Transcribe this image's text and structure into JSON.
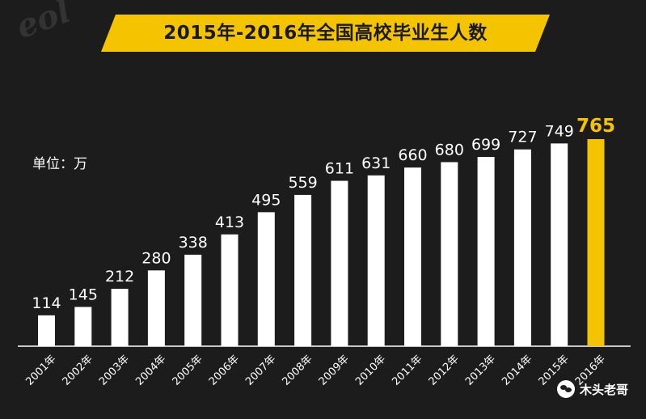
{
  "chart_data": {
    "type": "bar",
    "title": "2015年-2016年全国高校毕业生人数",
    "unit_label": "单位：万",
    "categories": [
      "2001年",
      "2002年",
      "2003年",
      "2004年",
      "2005年",
      "2006年",
      "2007年",
      "2008年",
      "2009年",
      "2010年",
      "2011年",
      "2012年",
      "2013年",
      "2014年",
      "2015年",
      "2016年"
    ],
    "values": [
      114,
      145,
      212,
      280,
      338,
      413,
      495,
      559,
      611,
      631,
      660,
      680,
      699,
      727,
      749,
      765
    ],
    "highlight_index": 15,
    "ylim": [
      0,
      765
    ],
    "xlabel": "",
    "ylabel": "",
    "grid": false
  },
  "colors": {
    "background": "#1c1c1c",
    "bar": "#ffffff",
    "highlight": "#f5c400",
    "banner": "#f5c400",
    "axis": "#ffffff"
  },
  "watermark": {
    "text": "eol"
  },
  "brand": {
    "text": "木头老哥",
    "icon": "wechat-icon"
  }
}
